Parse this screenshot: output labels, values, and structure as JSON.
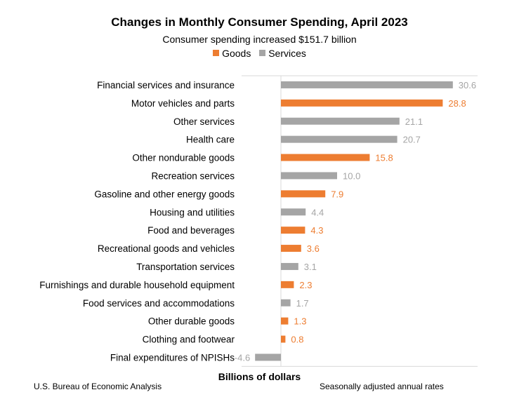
{
  "chart_data": {
    "type": "bar",
    "orientation": "horizontal",
    "title": "Changes in Monthly Consumer Spending, April 2023",
    "subtitle": "Consumer spending increased $151.7 billion",
    "xlabel": "Billions of dollars",
    "ylabel": "",
    "xlim": [
      -7,
      35
    ],
    "legend": [
      {
        "name": "Goods",
        "color": "#ED7D31"
      },
      {
        "name": "Services",
        "color": "#A5A5A5"
      }
    ],
    "legend_placement": "top-center",
    "grid": true,
    "categories": [
      "Financial services and insurance",
      "Motor vehicles and parts",
      "Other services",
      "Health care",
      "Other nondurable goods",
      "Recreation services",
      "Gasoline and other energy goods",
      "Housing and utilities",
      "Food and beverages",
      "Recreational goods and vehicles",
      "Transportation services",
      "Furnishings and durable household equipment",
      "Food services and accommodations",
      "Other durable goods",
      "Clothing and footwear",
      "Final expenditures of NPISHs"
    ],
    "values": [
      30.6,
      28.8,
      21.1,
      20.7,
      15.8,
      10.0,
      7.9,
      4.4,
      4.3,
      3.6,
      3.1,
      2.3,
      1.7,
      1.3,
      0.8,
      -4.6
    ],
    "value_labels": [
      "30.6",
      "28.8",
      "21.1",
      "20.7",
      "15.8",
      "10.0",
      "7.9",
      "4.4",
      "4.3",
      "3.6",
      "3.1",
      "2.3",
      "1.7",
      "1.3",
      "0.8",
      "-4.6"
    ],
    "kinds": [
      "Services",
      "Goods",
      "Services",
      "Services",
      "Goods",
      "Services",
      "Goods",
      "Services",
      "Goods",
      "Goods",
      "Services",
      "Goods",
      "Services",
      "Goods",
      "Goods",
      "Services"
    ]
  },
  "footer": {
    "source": "U.S. Bureau of Economic Analysis",
    "note": "Seasonally adjusted annual rates"
  }
}
